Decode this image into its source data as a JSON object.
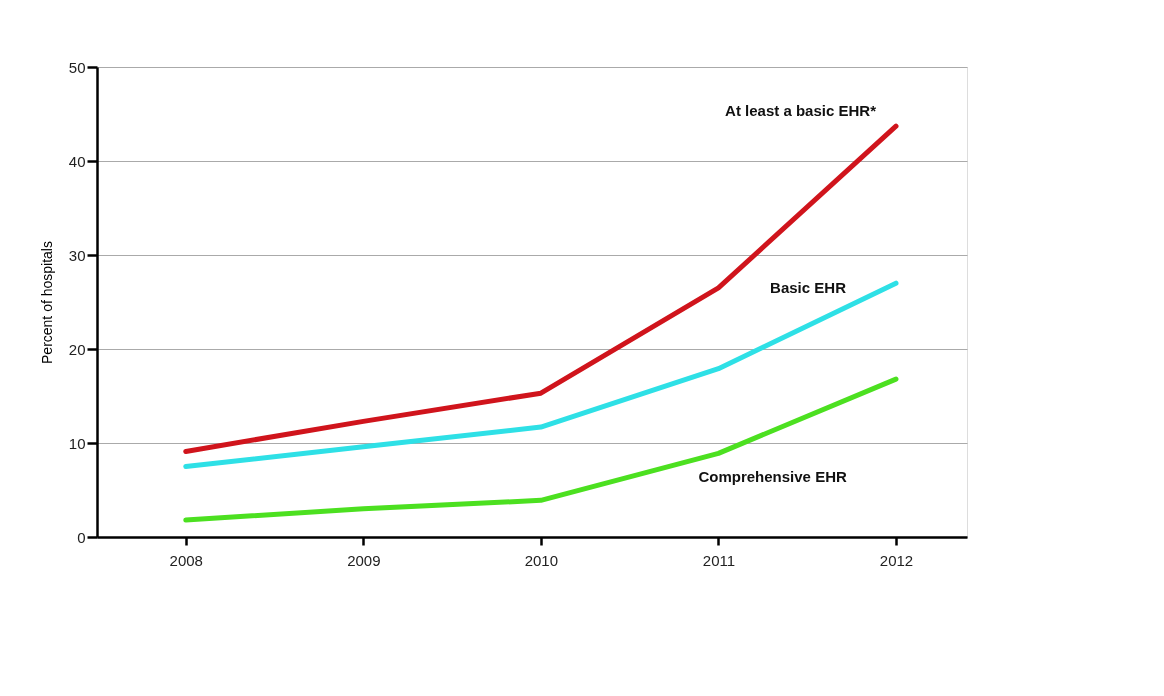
{
  "chart_data": {
    "type": "line",
    "ylabel": "Percent of hospitals",
    "x": [
      2008,
      2009,
      2010,
      2011,
      2012
    ],
    "series": [
      {
        "name": "At least a basic EHR*",
        "color": "#d0141c",
        "values": [
          9.1,
          12.3,
          15.3,
          26.5,
          43.7
        ]
      },
      {
        "name": "Basic EHR",
        "color": "#2ee0e6",
        "values": [
          7.5,
          9.6,
          11.7,
          17.9,
          27.0
        ]
      },
      {
        "name": "Comprehensive EHR",
        "color": "#4ce020",
        "values": [
          1.8,
          3.0,
          3.9,
          8.9,
          16.8
        ]
      }
    ],
    "xlim": [
      2007.5,
      2012.4
    ],
    "xticks": [
      2008,
      2009,
      2010,
      2011,
      2012
    ],
    "ylim": [
      0,
      50
    ],
    "yticks": [
      0,
      10,
      20,
      30,
      40,
      50
    ],
    "grid": "y",
    "legend": false,
    "marker": "none",
    "line_style": "solid"
  }
}
